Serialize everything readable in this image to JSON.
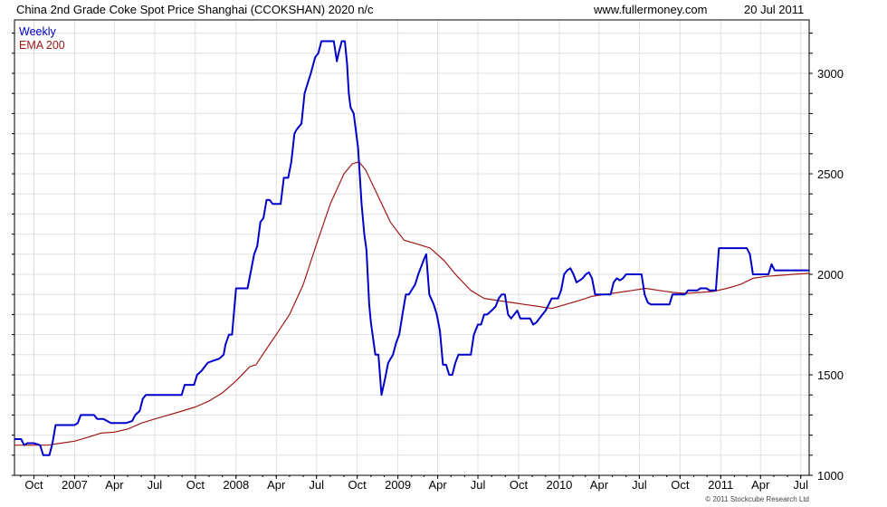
{
  "header": {
    "title": "China 2nd Grade Coke Spot Price Shanghai (CCOKSHAN) 2020 n/c",
    "site": "www.fullermoney.com",
    "date": "20 Jul 2011"
  },
  "footer": {
    "copyright": "© 2011 Stockcube Research Ltd"
  },
  "colors": {
    "weekly": "#0000c8",
    "ema": "#a01818",
    "grid": "#e0e0e0"
  },
  "chart_data": {
    "type": "line",
    "grid": true,
    "legend_position": "top-left",
    "ylim": [
      1000,
      3200
    ],
    "y_ticks": [
      1000,
      1500,
      2000,
      2500,
      3000
    ],
    "x_range": [
      "2006-08-18",
      "2011-07-20"
    ],
    "x_ticks": [
      {
        "label": "Oct",
        "date": "2006-10-01"
      },
      {
        "label": "2007",
        "date": "2007-01-01"
      },
      {
        "label": "Apr",
        "date": "2007-04-01"
      },
      {
        "label": "Jul",
        "date": "2007-07-01"
      },
      {
        "label": "Oct",
        "date": "2007-10-01"
      },
      {
        "label": "2008",
        "date": "2008-01-01"
      },
      {
        "label": "Apr",
        "date": "2008-04-01"
      },
      {
        "label": "Jul",
        "date": "2008-07-01"
      },
      {
        "label": "Oct",
        "date": "2008-10-01"
      },
      {
        "label": "2009",
        "date": "2009-01-01"
      },
      {
        "label": "Apr",
        "date": "2009-04-01"
      },
      {
        "label": "Jul",
        "date": "2009-07-01"
      },
      {
        "label": "Oct",
        "date": "2009-10-01"
      },
      {
        "label": "2010",
        "date": "2010-01-01"
      },
      {
        "label": "Apr",
        "date": "2010-04-01"
      },
      {
        "label": "Jul",
        "date": "2010-07-01"
      },
      {
        "label": "Oct",
        "date": "2010-10-01"
      },
      {
        "label": "2011",
        "date": "2011-01-01"
      },
      {
        "label": "Apr",
        "date": "2011-04-01"
      },
      {
        "label": "Jul",
        "date": "2011-07-01"
      }
    ],
    "series": [
      {
        "name": "Weekly",
        "color": "#0000c8",
        "points": [
          [
            "2006-08-18",
            1180
          ],
          [
            "2006-09-02",
            1180
          ],
          [
            "2006-09-09",
            1150
          ],
          [
            "2006-09-16",
            1160
          ],
          [
            "2006-10-01",
            1160
          ],
          [
            "2006-10-15",
            1150
          ],
          [
            "2006-10-22",
            1100
          ],
          [
            "2006-11-05",
            1100
          ],
          [
            "2006-11-12",
            1160
          ],
          [
            "2006-11-19",
            1250
          ],
          [
            "2006-12-17",
            1250
          ],
          [
            "2007-01-01",
            1250
          ],
          [
            "2007-01-08",
            1260
          ],
          [
            "2007-01-15",
            1300
          ],
          [
            "2007-02-14",
            1300
          ],
          [
            "2007-02-21",
            1280
          ],
          [
            "2007-03-07",
            1280
          ],
          [
            "2007-03-24",
            1260
          ],
          [
            "2007-04-10",
            1260
          ],
          [
            "2007-04-27",
            1260
          ],
          [
            "2007-05-11",
            1270
          ],
          [
            "2007-05-18",
            1300
          ],
          [
            "2007-05-28",
            1320
          ],
          [
            "2007-06-04",
            1380
          ],
          [
            "2007-06-11",
            1400
          ],
          [
            "2007-07-01",
            1400
          ],
          [
            "2007-08-31",
            1400
          ],
          [
            "2007-09-07",
            1450
          ],
          [
            "2007-09-28",
            1450
          ],
          [
            "2007-10-05",
            1500
          ],
          [
            "2007-10-15",
            1520
          ],
          [
            "2007-10-22",
            1540
          ],
          [
            "2007-10-29",
            1560
          ],
          [
            "2007-11-10",
            1570
          ],
          [
            "2007-11-24",
            1580
          ],
          [
            "2007-12-04",
            1600
          ],
          [
            "2007-12-08",
            1650
          ],
          [
            "2007-12-16",
            1700
          ],
          [
            "2007-12-23",
            1700
          ],
          [
            "2007-12-27",
            1800
          ],
          [
            "2008-01-01",
            1930
          ],
          [
            "2008-01-13",
            1930
          ],
          [
            "2008-01-27",
            1930
          ],
          [
            "2008-02-04",
            2020
          ],
          [
            "2008-02-11",
            2100
          ],
          [
            "2008-02-18",
            2140
          ],
          [
            "2008-02-25",
            2260
          ],
          [
            "2008-03-03",
            2280
          ],
          [
            "2008-03-10",
            2370
          ],
          [
            "2008-03-17",
            2370
          ],
          [
            "2008-03-24",
            2350
          ],
          [
            "2008-04-01",
            2350
          ],
          [
            "2008-04-11",
            2350
          ],
          [
            "2008-04-18",
            2480
          ],
          [
            "2008-04-28",
            2480
          ],
          [
            "2008-05-05",
            2560
          ],
          [
            "2008-05-12",
            2700
          ],
          [
            "2008-05-17",
            2720
          ],
          [
            "2008-05-28",
            2750
          ],
          [
            "2008-06-04",
            2900
          ],
          [
            "2008-06-11",
            2950
          ],
          [
            "2008-06-18",
            3000
          ],
          [
            "2008-06-28",
            3080
          ],
          [
            "2008-07-05",
            3100
          ],
          [
            "2008-07-12",
            3160
          ],
          [
            "2008-07-19",
            3160
          ],
          [
            "2008-08-09",
            3160
          ],
          [
            "2008-08-16",
            3060
          ],
          [
            "2008-08-20",
            3100
          ],
          [
            "2008-08-27",
            3160
          ],
          [
            "2008-09-03",
            3160
          ],
          [
            "2008-09-08",
            3050
          ],
          [
            "2008-09-12",
            2900
          ],
          [
            "2008-09-16",
            2830
          ],
          [
            "2008-09-23",
            2800
          ],
          [
            "2008-10-03",
            2630
          ],
          [
            "2008-10-11",
            2350
          ],
          [
            "2008-10-17",
            2200
          ],
          [
            "2008-10-22",
            2120
          ],
          [
            "2008-10-28",
            1850
          ],
          [
            "2008-11-01",
            1760
          ],
          [
            "2008-11-11",
            1600
          ],
          [
            "2008-11-18",
            1600
          ],
          [
            "2008-11-25",
            1400
          ],
          [
            "2008-12-03",
            1480
          ],
          [
            "2008-12-10",
            1560
          ],
          [
            "2008-12-21",
            1600
          ],
          [
            "2008-12-28",
            1660
          ],
          [
            "2009-01-04",
            1700
          ],
          [
            "2009-01-12",
            1810
          ],
          [
            "2009-01-19",
            1900
          ],
          [
            "2009-01-26",
            1900
          ],
          [
            "2009-02-09",
            1950
          ],
          [
            "2009-02-16",
            2000
          ],
          [
            "2009-03-02",
            2080
          ],
          [
            "2009-03-06",
            2100
          ],
          [
            "2009-03-13",
            1900
          ],
          [
            "2009-03-23",
            1850
          ],
          [
            "2009-03-30",
            1800
          ],
          [
            "2009-04-06",
            1720
          ],
          [
            "2009-04-13",
            1550
          ],
          [
            "2009-04-20",
            1550
          ],
          [
            "2009-04-27",
            1500
          ],
          [
            "2009-05-04",
            1500
          ],
          [
            "2009-05-11",
            1560
          ],
          [
            "2009-05-18",
            1600
          ],
          [
            "2009-06-01",
            1600
          ],
          [
            "2009-06-15",
            1600
          ],
          [
            "2009-06-22",
            1700
          ],
          [
            "2009-07-01",
            1750
          ],
          [
            "2009-07-08",
            1750
          ],
          [
            "2009-07-15",
            1800
          ],
          [
            "2009-07-22",
            1800
          ],
          [
            "2009-08-01",
            1820
          ],
          [
            "2009-08-10",
            1840
          ],
          [
            "2009-08-17",
            1880
          ],
          [
            "2009-08-24",
            1900
          ],
          [
            "2009-08-31",
            1900
          ],
          [
            "2009-09-07",
            1800
          ],
          [
            "2009-09-14",
            1780
          ],
          [
            "2009-09-21",
            1800
          ],
          [
            "2009-09-28",
            1820
          ],
          [
            "2009-10-05",
            1780
          ],
          [
            "2009-10-12",
            1780
          ],
          [
            "2009-10-27",
            1780
          ],
          [
            "2009-11-03",
            1750
          ],
          [
            "2009-11-10",
            1760
          ],
          [
            "2009-11-17",
            1780
          ],
          [
            "2009-11-24",
            1800
          ],
          [
            "2009-12-01",
            1820
          ],
          [
            "2009-12-08",
            1850
          ],
          [
            "2009-12-15",
            1880
          ],
          [
            "2009-12-29",
            1880
          ],
          [
            "2010-01-05",
            1920
          ],
          [
            "2010-01-12",
            2000
          ],
          [
            "2010-01-19",
            2020
          ],
          [
            "2010-01-26",
            2030
          ],
          [
            "2010-02-02",
            2000
          ],
          [
            "2010-02-09",
            1960
          ],
          [
            "2010-02-23",
            1980
          ],
          [
            "2010-03-02",
            2000
          ],
          [
            "2010-03-09",
            2010
          ],
          [
            "2010-03-16",
            1980
          ],
          [
            "2010-03-23",
            1900
          ],
          [
            "2010-04-27",
            1900
          ],
          [
            "2010-05-04",
            1960
          ],
          [
            "2010-05-11",
            1980
          ],
          [
            "2010-05-18",
            1970
          ],
          [
            "2010-05-25",
            1980
          ],
          [
            "2010-06-01",
            2000
          ],
          [
            "2010-06-15",
            2000
          ],
          [
            "2010-06-22",
            2000
          ],
          [
            "2010-07-06",
            2000
          ],
          [
            "2010-07-13",
            1900
          ],
          [
            "2010-07-20",
            1860
          ],
          [
            "2010-07-27",
            1850
          ],
          [
            "2010-09-07",
            1850
          ],
          [
            "2010-09-14",
            1900
          ],
          [
            "2010-10-12",
            1900
          ],
          [
            "2010-10-19",
            1920
          ],
          [
            "2010-11-09",
            1920
          ],
          [
            "2010-11-16",
            1930
          ],
          [
            "2010-11-30",
            1930
          ],
          [
            "2010-12-07",
            1920
          ],
          [
            "2010-12-21",
            1920
          ],
          [
            "2010-12-28",
            2130
          ],
          [
            "2011-03-01",
            2130
          ],
          [
            "2011-03-08",
            2100
          ],
          [
            "2011-03-15",
            2000
          ],
          [
            "2011-04-19",
            2000
          ],
          [
            "2011-04-26",
            2050
          ],
          [
            "2011-05-03",
            2020
          ],
          [
            "2011-07-20",
            2020
          ]
        ]
      },
      {
        "name": "EMA 200",
        "color": "#a01818",
        "points": [
          [
            "2006-08-18",
            1150
          ],
          [
            "2006-10-01",
            1150
          ],
          [
            "2006-11-01",
            1150
          ],
          [
            "2006-12-01",
            1160
          ],
          [
            "2007-01-01",
            1170
          ],
          [
            "2007-02-01",
            1190
          ],
          [
            "2007-03-01",
            1210
          ],
          [
            "2007-04-01",
            1215
          ],
          [
            "2007-05-01",
            1230
          ],
          [
            "2007-06-01",
            1260
          ],
          [
            "2007-07-01",
            1280
          ],
          [
            "2007-08-01",
            1300
          ],
          [
            "2007-09-01",
            1320
          ],
          [
            "2007-10-01",
            1340
          ],
          [
            "2007-11-01",
            1370
          ],
          [
            "2007-12-01",
            1410
          ],
          [
            "2008-01-01",
            1470
          ],
          [
            "2008-02-01",
            1540
          ],
          [
            "2008-02-15",
            1550
          ],
          [
            "2008-03-01",
            1600
          ],
          [
            "2008-04-01",
            1700
          ],
          [
            "2008-05-01",
            1800
          ],
          [
            "2008-06-01",
            1950
          ],
          [
            "2008-07-01",
            2150
          ],
          [
            "2008-08-01",
            2350
          ],
          [
            "2008-09-01",
            2500
          ],
          [
            "2008-09-20",
            2550
          ],
          [
            "2008-10-05",
            2560
          ],
          [
            "2008-10-20",
            2520
          ],
          [
            "2008-11-15",
            2400
          ],
          [
            "2008-12-15",
            2260
          ],
          [
            "2009-01-15",
            2170
          ],
          [
            "2009-02-15",
            2150
          ],
          [
            "2009-03-15",
            2130
          ],
          [
            "2009-04-15",
            2070
          ],
          [
            "2009-05-15",
            1990
          ],
          [
            "2009-06-15",
            1920
          ],
          [
            "2009-07-15",
            1880
          ],
          [
            "2009-08-15",
            1870
          ],
          [
            "2009-09-15",
            1860
          ],
          [
            "2009-10-15",
            1850
          ],
          [
            "2009-11-15",
            1840
          ],
          [
            "2009-12-15",
            1830
          ],
          [
            "2010-01-15",
            1850
          ],
          [
            "2010-02-15",
            1870
          ],
          [
            "2010-03-15",
            1890
          ],
          [
            "2010-04-15",
            1900
          ],
          [
            "2010-05-15",
            1910
          ],
          [
            "2010-06-15",
            1920
          ],
          [
            "2010-07-15",
            1930
          ],
          [
            "2010-08-15",
            1920
          ],
          [
            "2010-09-15",
            1910
          ],
          [
            "2010-10-15",
            1905
          ],
          [
            "2010-11-15",
            1910
          ],
          [
            "2010-12-15",
            1915
          ],
          [
            "2011-01-15",
            1930
          ],
          [
            "2011-02-15",
            1950
          ],
          [
            "2011-03-15",
            1980
          ],
          [
            "2011-04-15",
            1990
          ],
          [
            "2011-05-15",
            1995
          ],
          [
            "2011-06-15",
            2000
          ],
          [
            "2011-07-20",
            2005
          ]
        ]
      }
    ]
  },
  "legend": {
    "weekly": "Weekly",
    "ema": "EMA 200"
  }
}
